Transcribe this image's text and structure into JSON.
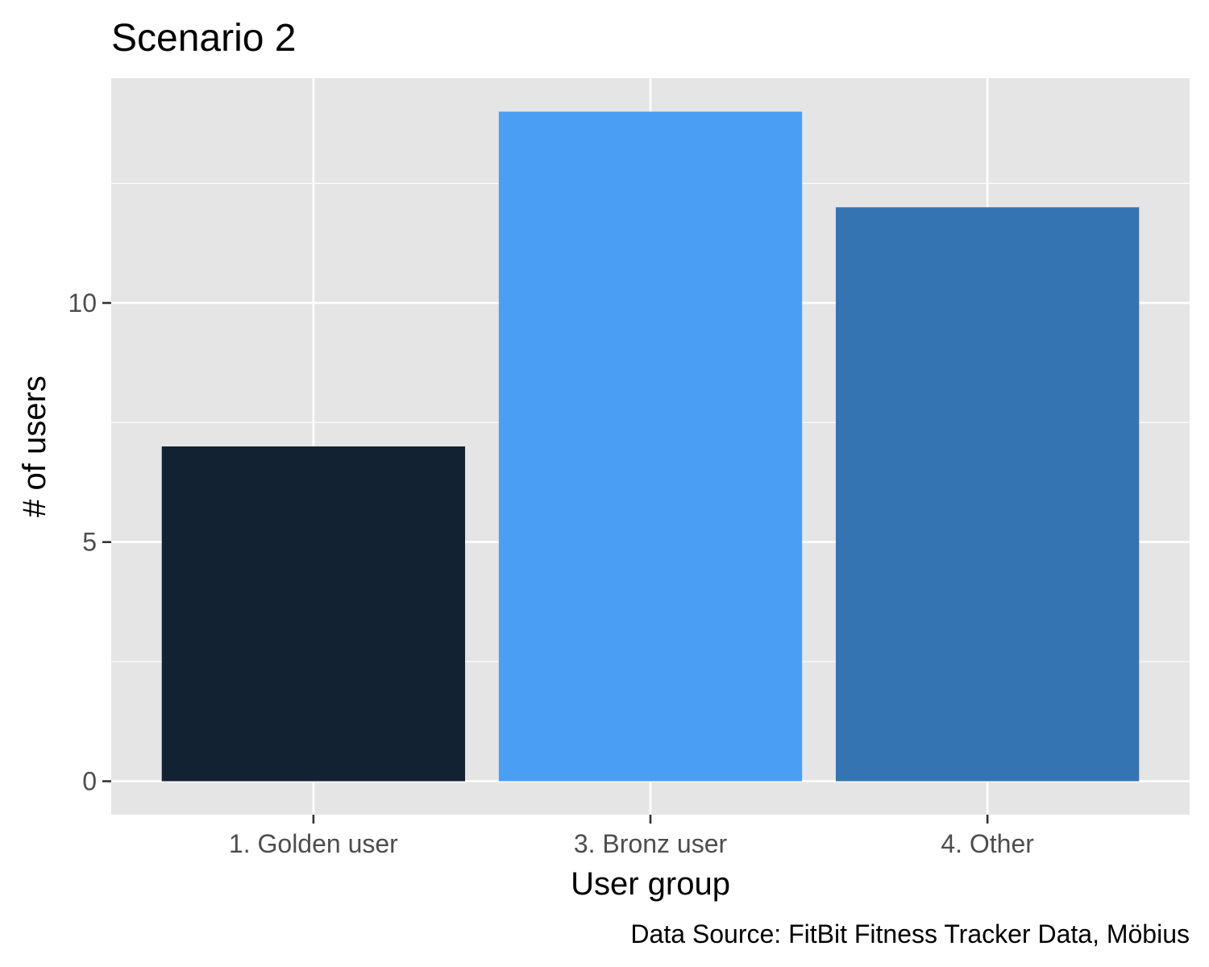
{
  "chart_data": {
    "type": "bar",
    "title": "Scenario 2",
    "xlabel": "User group",
    "ylabel": "# of users",
    "caption": "Data Source: FitBit Fitness Tracker Data, Möbius",
    "categories": [
      "1. Golden user",
      "3. Bronz user",
      "4. Other"
    ],
    "values": [
      7,
      14,
      12
    ],
    "bar_colors": [
      "#132233",
      "#4a9ff5",
      "#3574b2"
    ],
    "yticks": [
      0,
      5,
      10
    ],
    "ytick_labels": [
      "0",
      "5",
      "10"
    ],
    "ylim": [
      -0.7,
      14.7
    ],
    "grid": true,
    "legend": "none",
    "panel_background": "#e5e5e5",
    "grid_color": "#ffffff"
  }
}
